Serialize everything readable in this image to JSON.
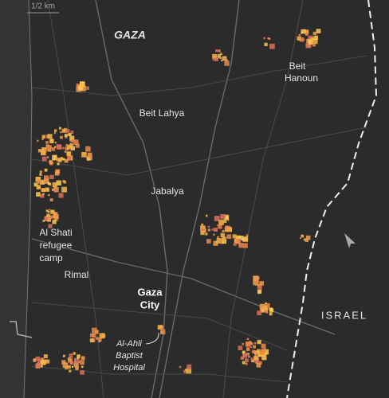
{
  "scale": "1/2 km",
  "labels": [
    {
      "lines": [
        "GAZA"
      ]
    },
    {
      "lines": [
        "Beit",
        "Hanoun"
      ]
    },
    {
      "lines": [
        "Beit Lahya"
      ]
    },
    {
      "lines": [
        "Jabalya"
      ]
    },
    {
      "lines": [
        "Al Shati",
        "refugee",
        "camp"
      ]
    },
    {
      "lines": [
        "Rimal"
      ]
    },
    {
      "lines": [
        "Gaza",
        "City"
      ]
    },
    {
      "lines": [
        "Al-Ahli",
        "Baptist",
        "Hospital"
      ]
    },
    {
      "lines": [
        "ISRAEL"
      ]
    }
  ]
}
